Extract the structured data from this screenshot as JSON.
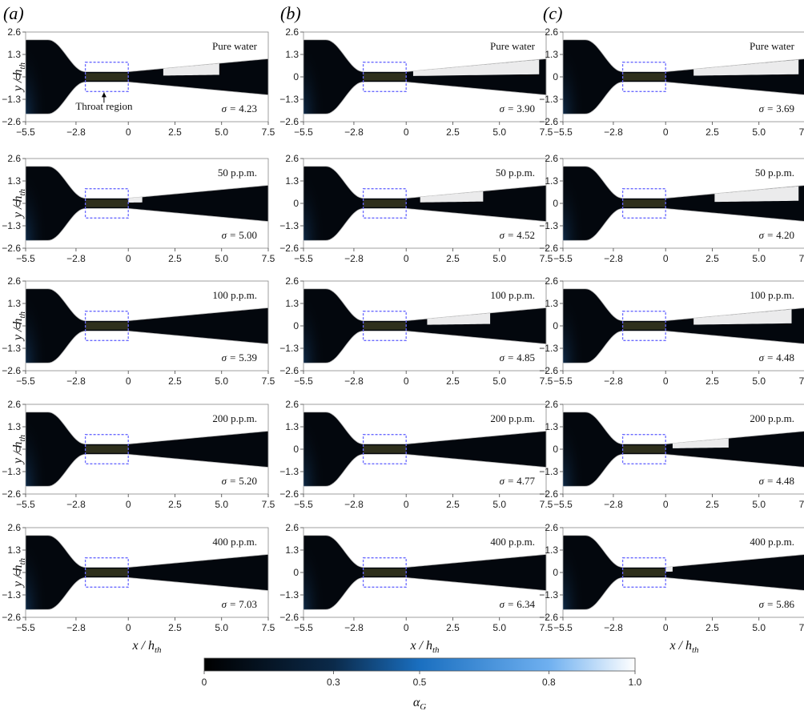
{
  "figure": {
    "columns": [
      {
        "letter": "(a)",
        "pure_sigma": "4.23"
      },
      {
        "letter": "(b)",
        "pure_sigma": "3.90"
      },
      {
        "letter": "(c)",
        "pure_sigma": "3.69"
      }
    ],
    "rows": [
      {
        "label": "Pure water",
        "sigmas": [
          "4.23",
          "3.90",
          "3.69"
        ]
      },
      {
        "label": "50 p.p.m.",
        "sigmas": [
          "5.00",
          "4.52",
          "4.20"
        ]
      },
      {
        "label": "100 p.p.m.",
        "sigmas": [
          "5.39",
          "4.85",
          "4.48"
        ]
      },
      {
        "label": "200 p.p.m.",
        "sigmas": [
          "5.20",
          "4.77",
          "4.48"
        ]
      },
      {
        "label": "400 p.p.m.",
        "sigmas": [
          "7.03",
          "6.34",
          "5.86"
        ]
      }
    ],
    "sigma_symbol": "σ = ",
    "throat_label": "Throat region",
    "x_ticks": [
      "−5.5",
      "−2.8",
      "0",
      "2.5",
      "5.0",
      "7.5"
    ],
    "y_ticks": [
      "2.6",
      "1.3",
      "0",
      "−1.3",
      "−2.6"
    ],
    "x_axis_label": "x / h",
    "x_axis_sub": "th",
    "y_axis_label": "y / h",
    "y_axis_sub": "th",
    "colorbar": {
      "ticks": [
        "0",
        "0.3",
        "0.5",
        "0.8",
        "1.0"
      ],
      "label": "α",
      "label_sub": "G",
      "colors": [
        "#000000",
        "#0b2a4a",
        "#1a6fc0",
        "#6fb0f0",
        "#ffffff"
      ]
    }
  }
}
